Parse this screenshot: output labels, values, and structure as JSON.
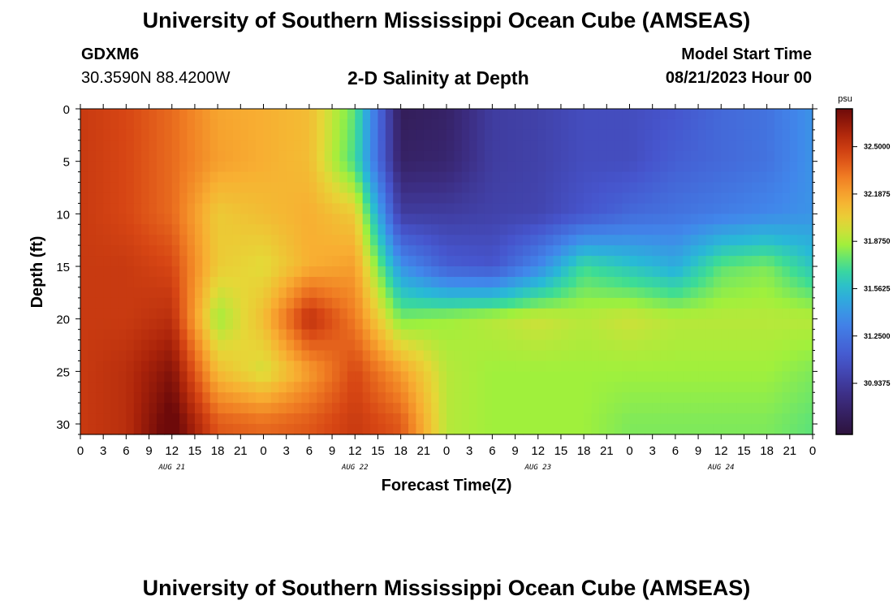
{
  "page": {
    "title": "University of Southern Mississippi Ocean Cube (AMSEAS)",
    "station_id": "GDXM6",
    "station_coords": "30.3590N  88.4200W",
    "subtitle": "2-D Salinity at Depth",
    "start_label": "Model Start Time",
    "start_value": "08/21/2023 Hour 00",
    "bottom_title": "University of Southern Mississippi Ocean Cube (AMSEAS)"
  },
  "chart_data": {
    "type": "heatmap",
    "title": "2-D Salinity at Depth",
    "xlabel": "Forecast Time(Z)",
    "ylabel": "Depth (ft)",
    "x_tick_labels": [
      "0",
      "3",
      "6",
      "9",
      "12",
      "15",
      "18",
      "21",
      "0",
      "3",
      "6",
      "9",
      "12",
      "15",
      "18",
      "21",
      "0",
      "3",
      "6",
      "9",
      "12",
      "15",
      "18",
      "21",
      "0",
      "3",
      "6",
      "9",
      "12",
      "15",
      "18",
      "21",
      "0"
    ],
    "day_labels": [
      "AUG 21",
      "AUG 22",
      "AUG 23",
      "AUG 24"
    ],
    "xlim_hours": [
      0,
      96
    ],
    "y_ticks": [
      0,
      5,
      10,
      15,
      20,
      25,
      30
    ],
    "ylim": [
      0,
      31
    ],
    "y_inverted": true,
    "colorbar": {
      "unit": "psu",
      "ticks": [
        "32.5000",
        "32.1875",
        "31.8750",
        "31.5625",
        "31.2500",
        "30.9375"
      ],
      "tick_values": [
        32.5,
        32.1875,
        31.875,
        31.5625,
        31.25,
        30.9375
      ],
      "range": [
        30.6,
        32.75
      ]
    },
    "field": {
      "description_grid_hours": [
        0,
        6,
        12,
        18,
        24,
        30,
        36,
        42,
        48,
        54,
        60,
        66,
        72,
        78,
        84,
        90,
        96
      ],
      "depths_ft": [
        0,
        5,
        10,
        15,
        20,
        25,
        30
      ],
      "values": [
        [
          32.5,
          32.45,
          32.35,
          32.18,
          32.15,
          32.1,
          31.75,
          30.7,
          30.75,
          30.95,
          30.98,
          31.05,
          31.05,
          31.1,
          31.2,
          31.25,
          31.4
        ],
        [
          32.5,
          32.45,
          32.35,
          32.2,
          32.15,
          32.1,
          31.7,
          30.75,
          30.78,
          30.95,
          30.98,
          31.05,
          31.05,
          31.15,
          31.2,
          31.25,
          31.4
        ],
        [
          32.5,
          32.45,
          32.35,
          32.05,
          32.1,
          32.15,
          32.05,
          30.95,
          30.95,
          30.98,
          31.0,
          31.1,
          31.2,
          31.25,
          31.3,
          31.35,
          31.4
        ],
        [
          32.5,
          32.5,
          32.45,
          32.05,
          31.98,
          32.15,
          32.2,
          31.4,
          31.15,
          31.1,
          31.35,
          31.7,
          31.6,
          31.5,
          31.75,
          31.8,
          31.6
        ],
        [
          32.5,
          32.5,
          32.55,
          31.85,
          32.1,
          32.55,
          32.3,
          31.8,
          31.85,
          31.9,
          31.95,
          31.9,
          31.95,
          31.9,
          31.9,
          31.9,
          31.9
        ],
        [
          32.5,
          32.55,
          32.7,
          32.1,
          31.95,
          32.2,
          32.45,
          32.2,
          31.9,
          31.85,
          31.85,
          31.85,
          31.85,
          31.85,
          31.85,
          31.85,
          31.8
        ],
        [
          32.5,
          32.55,
          32.8,
          32.4,
          32.35,
          32.4,
          32.5,
          32.4,
          31.9,
          31.85,
          31.85,
          31.85,
          31.8,
          31.8,
          31.8,
          31.8,
          31.75
        ]
      ]
    }
  }
}
